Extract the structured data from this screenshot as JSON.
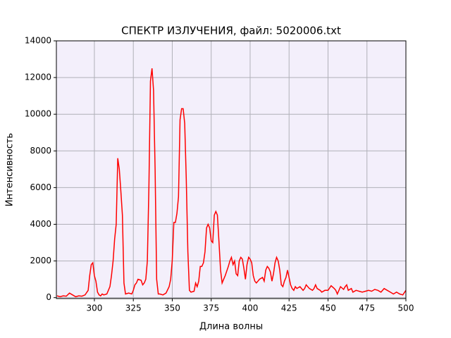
{
  "chart_data": {
    "type": "line",
    "title": "СПЕКТР ИЗЛУЧЕНИЯ, файл: 5020006.txt",
    "x_label": "Длина волны",
    "y_label": "Интенсивность",
    "xlim": [
      275.6,
      500
    ],
    "ylim": [
      -50,
      14000
    ],
    "xticks": [
      300,
      325,
      350,
      375,
      400,
      425,
      450,
      475,
      500
    ],
    "yticks": [
      0,
      2000,
      4000,
      6000,
      8000,
      10000,
      12000,
      14000
    ],
    "grid": true,
    "series": [
      {
        "color": "#ff0000",
        "x": [
          276,
          278,
          280,
          282,
          284,
          286,
          288,
          290,
          292,
          294,
          296,
          297,
          298,
          299,
          300,
          301,
          302,
          303,
          304,
          305,
          306,
          308,
          310,
          311,
          312,
          313,
          314,
          315,
          316,
          317,
          318,
          319,
          320,
          322,
          324,
          325,
          326,
          327,
          328,
          330,
          331,
          332,
          333,
          334,
          335,
          336,
          337,
          338,
          339,
          340,
          341,
          342,
          344,
          346,
          348,
          349,
          350,
          351,
          352,
          353,
          354,
          355,
          356,
          357,
          358,
          359,
          360,
          361,
          362,
          364,
          365,
          366,
          367,
          368,
          369,
          370,
          371,
          372,
          373,
          374,
          375,
          376,
          377,
          378,
          379,
          380,
          381,
          382,
          383,
          384,
          386,
          387,
          388,
          389,
          390,
          391,
          392,
          393,
          394,
          395,
          396,
          397,
          398,
          399,
          400,
          401,
          402,
          403,
          404,
          405,
          406,
          408,
          409,
          410,
          411,
          412,
          413,
          414,
          415,
          416,
          417,
          418,
          419,
          420,
          421,
          422,
          423,
          424,
          425,
          426,
          427,
          428,
          429,
          430,
          432,
          434,
          435,
          436,
          438,
          440,
          441,
          442,
          443,
          445,
          446,
          448,
          450,
          452,
          454,
          455,
          456,
          458,
          460,
          461,
          462,
          463,
          465,
          466,
          468,
          470,
          472,
          474,
          476,
          478,
          480,
          482,
          484,
          486,
          488,
          490,
          492,
          494,
          496,
          498,
          500
        ],
        "values": [
          100,
          50,
          100,
          80,
          250,
          150,
          50,
          100,
          80,
          150,
          400,
          1200,
          1800,
          1900,
          1200,
          900,
          300,
          150,
          100,
          200,
          150,
          200,
          600,
          1200,
          2000,
          3200,
          4000,
          7600,
          7000,
          5800,
          4500,
          800,
          200,
          250,
          200,
          400,
          700,
          800,
          1000,
          950,
          700,
          800,
          1000,
          2000,
          6000,
          11800,
          12500,
          11300,
          7000,
          1000,
          200,
          200,
          150,
          250,
          600,
          1000,
          2000,
          4100,
          4100,
          4600,
          5500,
          9700,
          10300,
          10300,
          9500,
          6500,
          2500,
          400,
          300,
          350,
          800,
          600,
          900,
          1700,
          1700,
          1900,
          2500,
          3800,
          4000,
          3800,
          3100,
          3000,
          4500,
          4700,
          4500,
          3000,
          1500,
          800,
          1000,
          1200,
          1700,
          2000,
          2200,
          1800,
          2000,
          1300,
          1200,
          2000,
          2200,
          2100,
          1600,
          1000,
          1800,
          2200,
          2100,
          1900,
          1200,
          900,
          800,
          900,
          1000,
          1100,
          900,
          1500,
          1700,
          1600,
          1400,
          900,
          1300,
          1900,
          2200,
          2000,
          1500,
          700,
          600,
          900,
          1100,
          1500,
          1100,
          700,
          500,
          400,
          600,
          500,
          600,
          400,
          500,
          700,
          500,
          400,
          500,
          700,
          500,
          400,
          300,
          400,
          400,
          650,
          500,
          400,
          200,
          600,
          450,
          600,
          700,
          400,
          500,
          300,
          400,
          350,
          300,
          350,
          400,
          350,
          450,
          400,
          300,
          500,
          400,
          300,
          200,
          300,
          200,
          150,
          400
        ]
      }
    ]
  }
}
